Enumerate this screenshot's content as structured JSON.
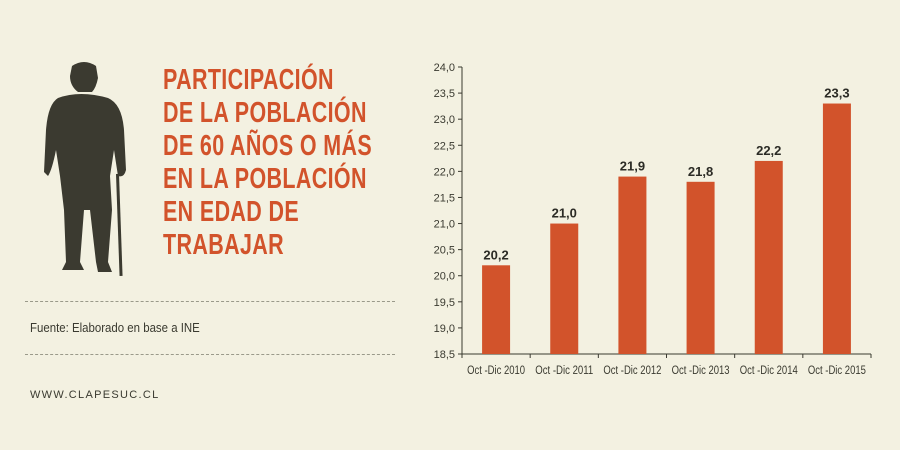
{
  "title_lines": [
    "PARTICIPACIÓN",
    "DE LA POBLACIÓN",
    "DE 60 AÑOS O MÁS",
    "EN LA POBLACIÓN",
    "EN EDAD DE",
    "TRABAJAR"
  ],
  "source": "Fuente: Elaborado en base a INE",
  "website": "WWW.CLAPESUC.CL",
  "colors": {
    "bar": "#d2532b",
    "title": "#d2532b",
    "silhouette": "#3b3a30",
    "background": "#f3f1e1"
  },
  "chart_data": {
    "type": "bar",
    "title": "PARTICIPACIÓN DE LA POBLACIÓN DE 60 AÑOS O MÁS EN LA POBLACIÓN EN EDAD DE TRABAJAR",
    "categories": [
      "Oct -Dic 2010",
      "Oct -Dic 2011",
      "Oct -Dic 2012",
      "Oct -Dic 2013",
      "Oct -Dic 2014",
      "Oct -Dic 2015"
    ],
    "values": [
      20.2,
      21.0,
      21.9,
      21.8,
      22.2,
      23.3
    ],
    "value_labels": [
      "20,2",
      "21,0",
      "21,9",
      "21,8",
      "22,2",
      "23,3"
    ],
    "yticks": [
      "18,5",
      "19,0",
      "19,5",
      "20,0",
      "20,5",
      "21,0",
      "21,5",
      "22,0",
      "22,5",
      "23,0",
      "23,5",
      "24,0"
    ],
    "ylim": [
      18.5,
      24.0
    ],
    "xlabel": "",
    "ylabel": "",
    "grid": false
  }
}
